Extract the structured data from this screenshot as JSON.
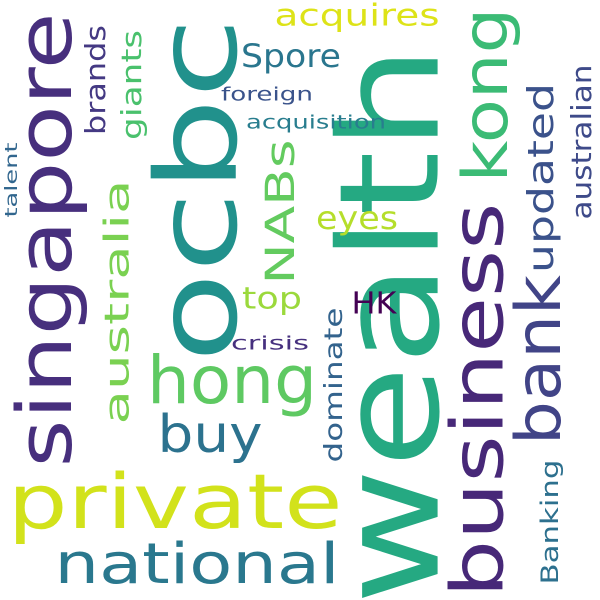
{
  "words": [
    {
      "text": "wealth",
      "color": "#25a982",
      "orient": "v"
    },
    {
      "text": "ocbc",
      "color": "#21918c",
      "orient": "v"
    },
    {
      "text": "singapore",
      "color": "#472f7d",
      "orient": "v"
    },
    {
      "text": "private",
      "color": "#d2e21b",
      "orient": "h"
    },
    {
      "text": "business",
      "color": "#472878",
      "orient": "v"
    },
    {
      "text": "hong",
      "color": "#5ec962",
      "orient": "h"
    },
    {
      "text": "kong",
      "color": "#3bbb75",
      "orient": "v"
    },
    {
      "text": "bank",
      "color": "#414487",
      "orient": "v"
    },
    {
      "text": "national",
      "color": "#2a788e",
      "orient": "h"
    },
    {
      "text": "buy",
      "color": "#2c728e",
      "orient": "h"
    },
    {
      "text": "NABs",
      "color": "#63cb5f",
      "orient": "v"
    },
    {
      "text": "updated",
      "color": "#3b528b",
      "orient": "v"
    },
    {
      "text": "australia",
      "color": "#7ad151",
      "orient": "v"
    },
    {
      "text": "australian",
      "color": "#3e4a89",
      "orient": "v"
    },
    {
      "text": "acquires",
      "color": "#dde318",
      "orient": "h"
    },
    {
      "text": "Spore",
      "color": "#2a768e",
      "orient": "h"
    },
    {
      "text": "brands",
      "color": "#443983",
      "orient": "v"
    },
    {
      "text": "giants",
      "color": "#4ac16d",
      "orient": "v"
    },
    {
      "text": "eyes",
      "color": "#b5de2b",
      "orient": "h"
    },
    {
      "text": "top",
      "color": "#9bd93c",
      "orient": "h"
    },
    {
      "text": "HK",
      "color": "#440154",
      "orient": "h"
    },
    {
      "text": "dominate",
      "color": "#33638d",
      "orient": "v"
    },
    {
      "text": "Banking",
      "color": "#2d708e",
      "orient": "v"
    },
    {
      "text": "foreign",
      "color": "#3a538b",
      "orient": "h"
    },
    {
      "text": "acquisition",
      "color": "#287d8e",
      "orient": "h"
    },
    {
      "text": "crisis",
      "color": "#46307e",
      "orient": "h"
    },
    {
      "text": "talent",
      "color": "#31668e",
      "orient": "v"
    }
  ]
}
